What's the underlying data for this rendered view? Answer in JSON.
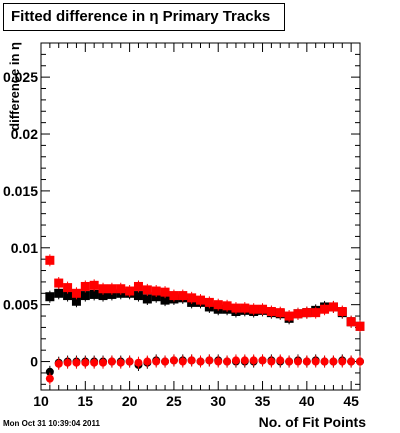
{
  "title": "Fitted difference in  η Primary Tracks",
  "timestamp": "Mon Oct 31 10:39:04 2011",
  "chart_data": {
    "type": "scatter",
    "title": "Fitted difference in  η Primary Tracks",
    "xlabel": "No. of Fit Points",
    "ylabel": "difference in η",
    "xlim": [
      10,
      46
    ],
    "ylim": [
      -0.0025,
      0.028
    ],
    "xticks": [
      10,
      15,
      20,
      25,
      30,
      35,
      40,
      45
    ],
    "xtick_labels": [
      "10",
      "15",
      "20",
      "25",
      "30",
      "35",
      "40",
      "45"
    ],
    "yticks": [
      0,
      0.005,
      0.01,
      0.015,
      0.02,
      0.025
    ],
    "ytick_labels": [
      "0",
      "0.005",
      "0.01",
      "0.015",
      "0.02",
      "0.025"
    ],
    "grid": false,
    "series": [
      {
        "color": "#000000",
        "marker": "square",
        "x": [
          11,
          12,
          13,
          14,
          15,
          16,
          17,
          18,
          19,
          20,
          21,
          22,
          23,
          24,
          25,
          26,
          27,
          28,
          29,
          30,
          31,
          32,
          33,
          34,
          35,
          36,
          37,
          38,
          39,
          40,
          41,
          42,
          43,
          44,
          45,
          46
        ],
        "y": [
          0.0057,
          0.006,
          0.0058,
          0.0053,
          0.0058,
          0.0059,
          0.0058,
          0.0059,
          0.006,
          0.006,
          0.0058,
          0.0055,
          0.0057,
          0.0054,
          0.0055,
          0.0056,
          0.0052,
          0.0052,
          0.0048,
          0.0046,
          0.0046,
          0.0044,
          0.0045,
          0.0044,
          0.0045,
          0.0043,
          0.0042,
          0.0038,
          0.0042,
          0.0043,
          0.0045,
          0.0048,
          0.0048,
          0.0043,
          0.0035,
          0.0031
        ]
      },
      {
        "color": "#ff0000",
        "marker": "square",
        "x": [
          11,
          12,
          13,
          14,
          15,
          16,
          17,
          18,
          19,
          20,
          21,
          22,
          23,
          24,
          25,
          26,
          27,
          28,
          29,
          30,
          31,
          32,
          33,
          34,
          35,
          36,
          37,
          38,
          39,
          40,
          41,
          42,
          43,
          44,
          45,
          46
        ],
        "y": [
          0.0089,
          0.0069,
          0.0065,
          0.006,
          0.0066,
          0.0067,
          0.0064,
          0.0064,
          0.0064,
          0.0062,
          0.0066,
          0.0063,
          0.0062,
          0.0061,
          0.0058,
          0.0058,
          0.0056,
          0.0054,
          0.0052,
          0.005,
          0.0049,
          0.0047,
          0.0047,
          0.0046,
          0.0046,
          0.0044,
          0.0043,
          0.004,
          0.0042,
          0.0043,
          0.0043,
          0.0046,
          0.0048,
          0.0044,
          0.0035,
          0.0031
        ]
      },
      {
        "color": "#000000",
        "marker": "circle",
        "x": [
          11,
          12,
          13,
          14,
          15,
          16,
          17,
          18,
          19,
          20,
          21,
          22,
          23,
          24,
          25,
          26,
          27,
          28,
          29,
          30,
          31,
          32,
          33,
          34,
          35,
          36,
          37,
          38,
          39,
          40,
          41,
          42,
          43,
          44,
          45,
          46
        ],
        "y": [
          -0.0009,
          -0.0001,
          0,
          0,
          0,
          0,
          0,
          0,
          0,
          0,
          -0.0003,
          -0.0001,
          0.0001,
          0,
          0.0001,
          0.0001,
          0.0001,
          0,
          0.0001,
          0.0001,
          0,
          0,
          0,
          0,
          0.0001,
          0.0001,
          0,
          0,
          0.0001,
          0,
          0.0001,
          0,
          0,
          0.0001,
          0,
          0
        ]
      },
      {
        "color": "#ff0000",
        "marker": "circle",
        "x": [
          11,
          12,
          13,
          14,
          15,
          16,
          17,
          18,
          19,
          20,
          21,
          22,
          23,
          24,
          25,
          26,
          27,
          28,
          29,
          30,
          31,
          32,
          33,
          34,
          35,
          36,
          37,
          38,
          39,
          40,
          41,
          42,
          43,
          44,
          45,
          46
        ],
        "y": [
          -0.0015,
          -0.0002,
          -0.0001,
          -0.0001,
          -0.0001,
          -0.0001,
          -0.0001,
          0,
          -0.0001,
          0,
          -0.0001,
          0,
          0,
          0,
          0.0001,
          0,
          0.0001,
          0,
          0.0001,
          0,
          0,
          0.0001,
          0.0001,
          0.0001,
          0.0001,
          0,
          0.0001,
          0,
          0,
          0,
          0,
          0,
          0,
          0,
          0,
          0
        ]
      }
    ]
  }
}
